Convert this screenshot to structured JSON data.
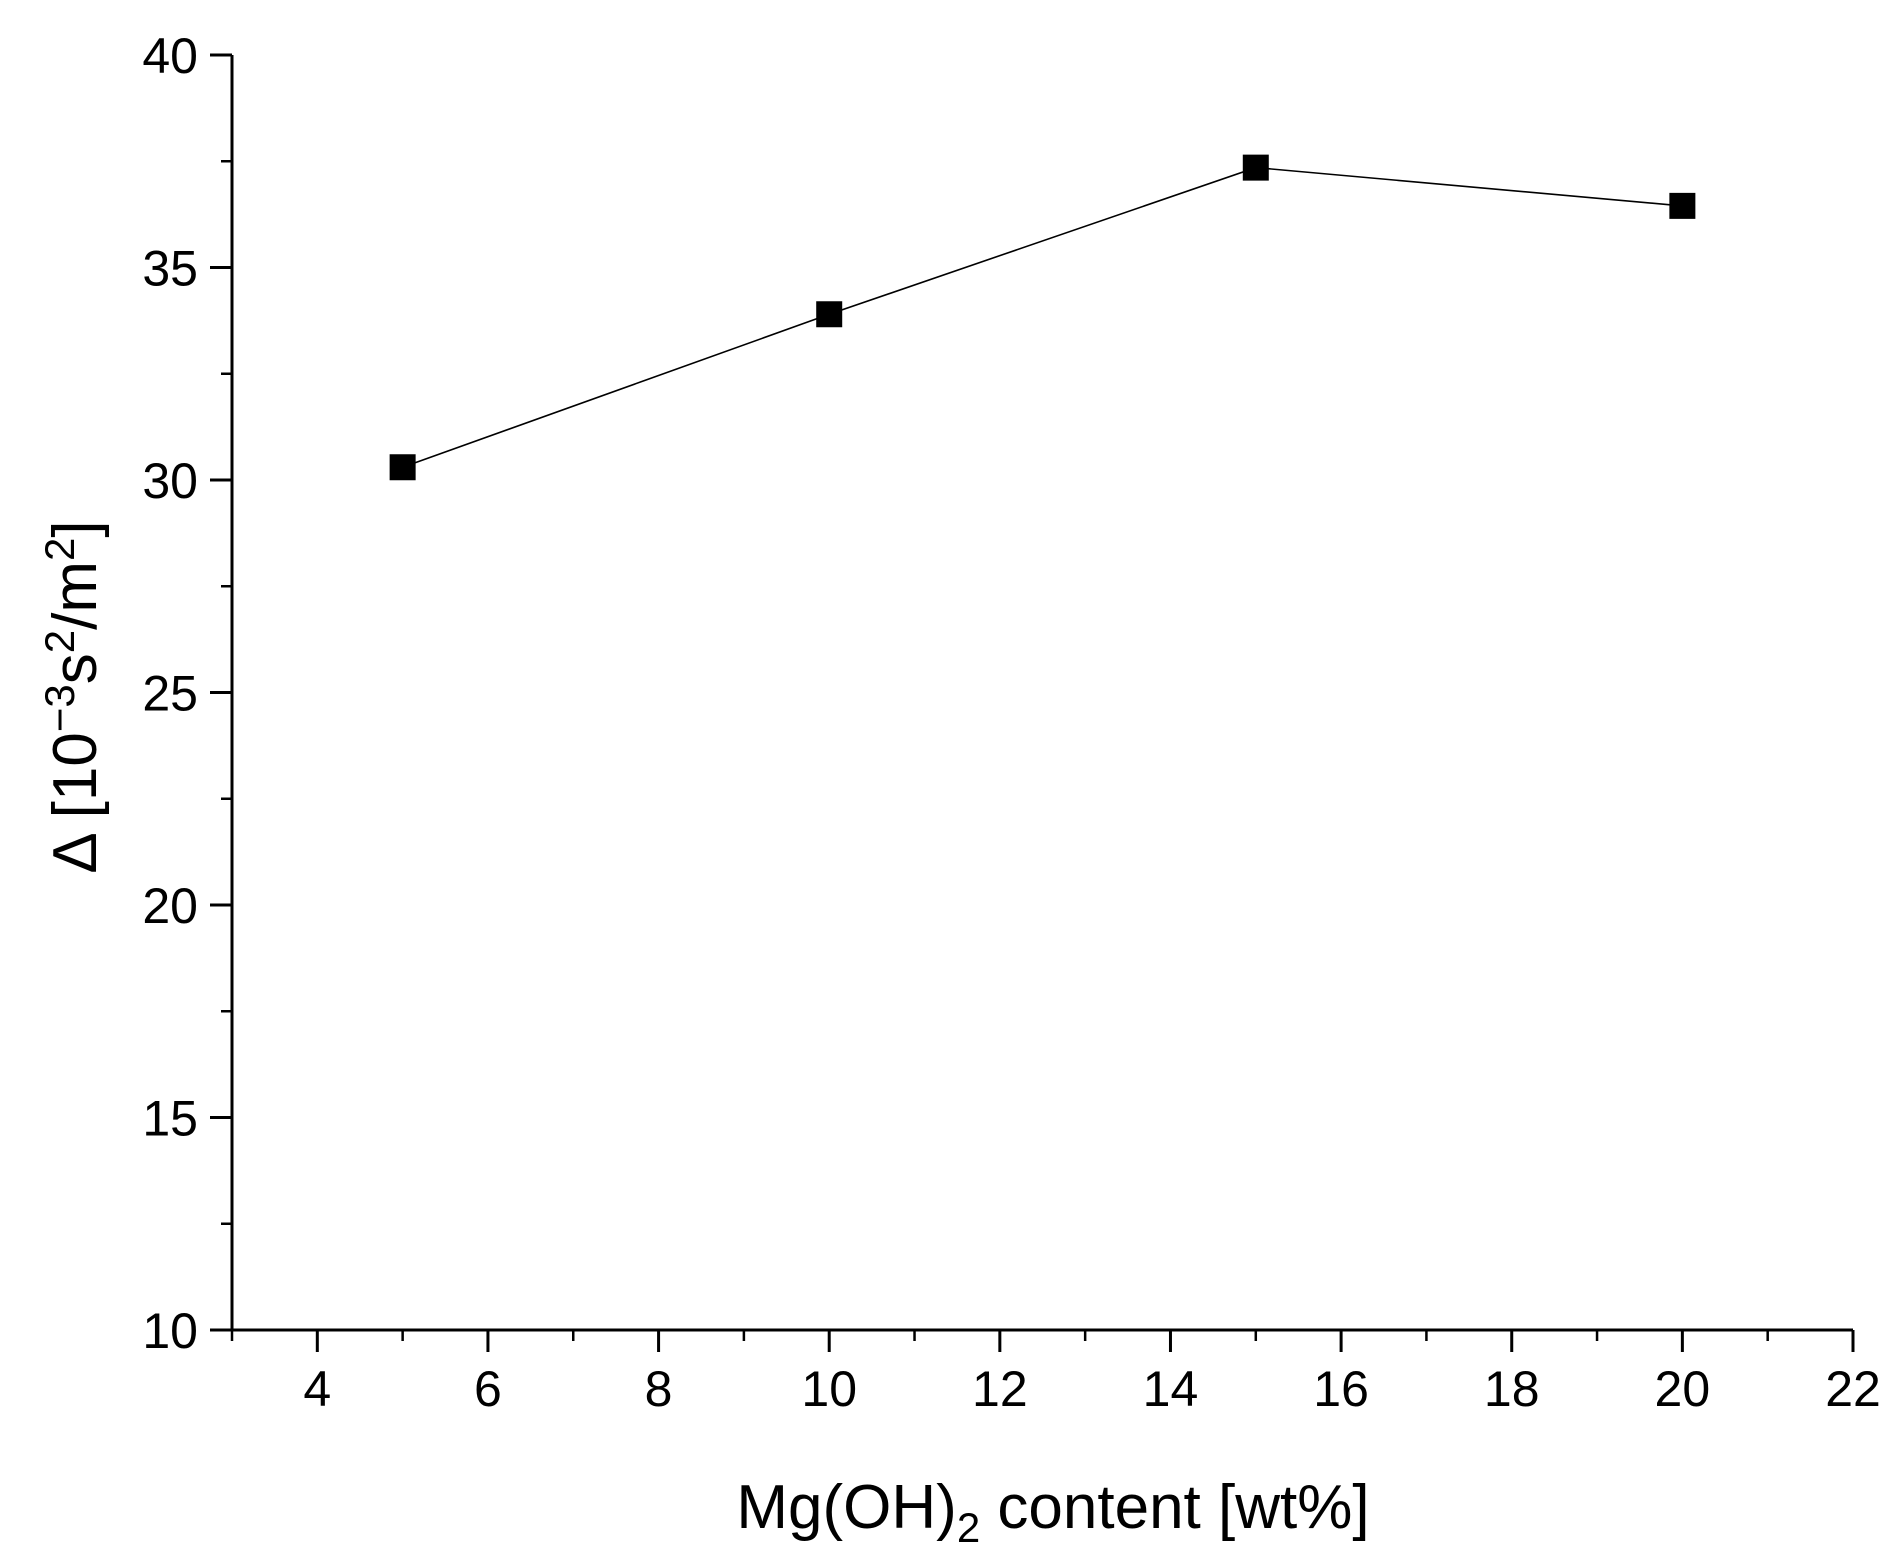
{
  "chart_data": {
    "type": "line",
    "title": "",
    "xlabel": {
      "base": "Mg(OH)",
      "sub": "2",
      "rest": " content [wt%]"
    },
    "ylabel": {
      "prefix": "Δ [10",
      "sup1": "−3",
      "mid": "s",
      "sup2": "2",
      "mid2": "/m",
      "sup3": "2",
      "suffix": "]"
    },
    "xlim": [
      3,
      22
    ],
    "ylim": [
      10,
      40
    ],
    "xticks": [
      4,
      6,
      8,
      10,
      12,
      14,
      16,
      18,
      20,
      22
    ],
    "yticks": [
      10,
      15,
      20,
      25,
      30,
      35,
      40
    ],
    "x_minor_step": 1,
    "y_minor_step": 2.5,
    "grid": false,
    "legend": "none",
    "marker": "square",
    "series": [
      {
        "color": "#000000",
        "x": [
          5,
          10,
          15,
          20
        ],
        "y": [
          30.3,
          33.9,
          37.35,
          36.45
        ]
      }
    ]
  }
}
